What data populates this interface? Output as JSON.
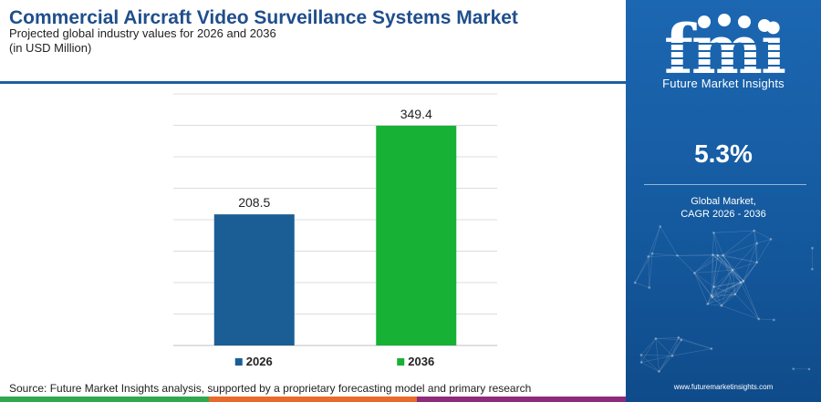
{
  "header": {
    "title": "Commercial Aircraft Video Surveillance Systems Market",
    "subtitle": "Projected global industry values for 2026 and 2036",
    "unit": "(in USD Million)"
  },
  "chart_data": {
    "type": "bar",
    "categories": [
      "2026",
      "2036"
    ],
    "values": [
      208.5,
      349.4
    ],
    "value_labels": [
      "208.5",
      "349.4"
    ],
    "legend": [
      "2026",
      "2036"
    ],
    "legend_placement": "bottom",
    "colors": [
      "#1b5e95",
      "#17b135"
    ],
    "ylim": [
      0,
      400
    ],
    "grid": true
  },
  "footer": {
    "source": "Source: Future Market Insights analysis, supported by a proprietary forecasting model and primary research",
    "strip_colors": [
      "#2fa84f",
      "#e96b2c",
      "#8f2b7b"
    ]
  },
  "side_panel": {
    "logo_text": "fmi",
    "brand_name": "Future Market Insights",
    "cagr_value": "5.3%",
    "cagr_label_line1": "Global Market,",
    "cagr_label_line2": "CAGR 2026 - 2036",
    "website": "www.futuremarketinsights.com",
    "bg_color": "#1a63ad"
  }
}
